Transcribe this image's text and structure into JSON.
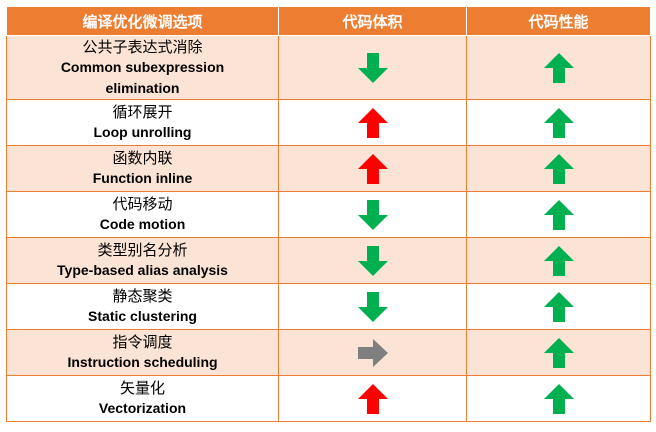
{
  "headers": [
    "编译优化微调选项",
    "代码体积",
    "代码性能"
  ],
  "colors": {
    "header_bg": "#ED7D31",
    "odd_row_bg": "#FBE4D5",
    "up_green": "#00B050",
    "down_green": "#00B050",
    "up_red": "#FF0000",
    "neutral_gray": "#7F7F7F"
  },
  "rows": [
    {
      "cn": "公共子表达式消除",
      "en": [
        "Common subexpression",
        "elimination"
      ],
      "size": "down-green",
      "perf": "up-green"
    },
    {
      "cn": "循环展开",
      "en": [
        "Loop unrolling"
      ],
      "size": "up-red",
      "perf": "up-green"
    },
    {
      "cn": "函数内联",
      "en": [
        "Function inline"
      ],
      "size": "up-red",
      "perf": "up-green"
    },
    {
      "cn": "代码移动",
      "en": [
        "Code motion"
      ],
      "size": "down-green",
      "perf": "up-green"
    },
    {
      "cn": "类型别名分析",
      "en": [
        "Type-based alias analysis"
      ],
      "size": "down-green",
      "perf": "up-green"
    },
    {
      "cn": "静态聚类",
      "en": [
        "Static clustering"
      ],
      "size": "down-green",
      "perf": "up-green"
    },
    {
      "cn": "指令调度",
      "en": [
        "Instruction scheduling"
      ],
      "size": "right-gray",
      "perf": "up-green"
    },
    {
      "cn": "矢量化",
      "en": [
        "Vectorization"
      ],
      "size": "up-red",
      "perf": "up-green"
    }
  ]
}
